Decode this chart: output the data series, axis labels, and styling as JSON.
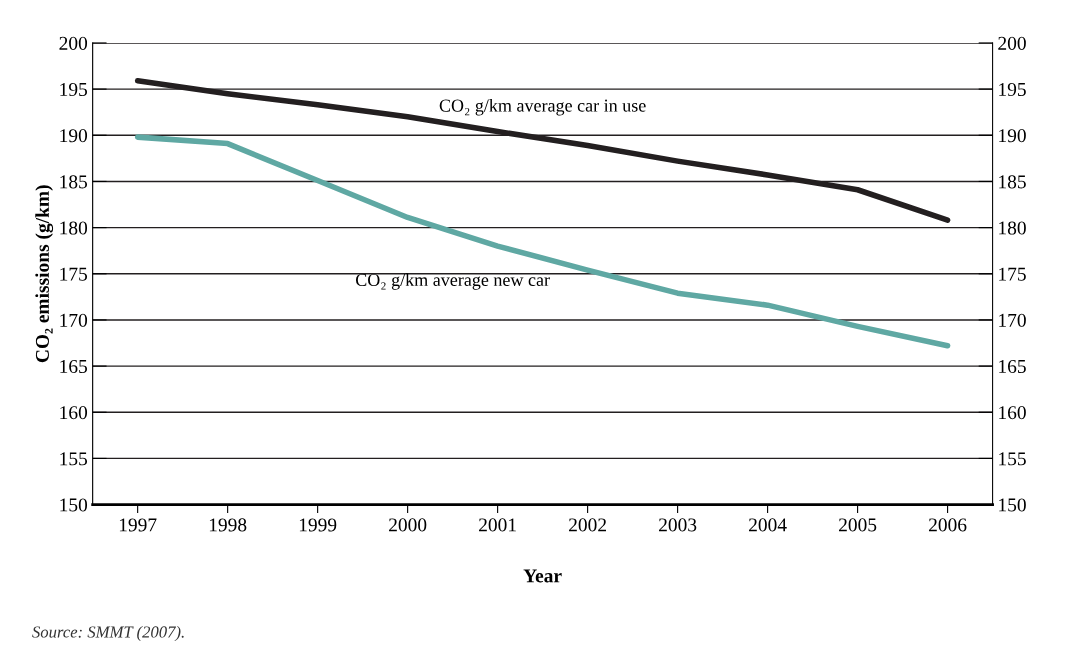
{
  "chart_data": {
    "type": "line",
    "xlabel": "Year",
    "ylabel": "CO₂ emissions (g/km)",
    "categories": [
      "1997",
      "1998",
      "1999",
      "2000",
      "2001",
      "2002",
      "2003",
      "2004",
      "2005",
      "2006"
    ],
    "series": [
      {
        "name": "CO₂ g/km average car in use",
        "color": "#231f20",
        "values": [
          195.9,
          194.5,
          193.3,
          192.0,
          190.4,
          188.9,
          187.2,
          185.7,
          184.1,
          180.8
        ]
      },
      {
        "name": "CO₂ g/km average new car",
        "color": "#5fa8a3",
        "values": [
          189.8,
          189.1,
          185.1,
          181.1,
          178.0,
          175.4,
          172.9,
          171.6,
          169.3,
          167.2
        ]
      }
    ],
    "ylim": [
      150,
      200
    ],
    "yticks": [
      150,
      155,
      160,
      165,
      170,
      175,
      180,
      185,
      190,
      195,
      200
    ],
    "y2lim": [
      150,
      200
    ],
    "y2ticks": [
      150,
      155,
      160,
      165,
      170,
      175,
      180,
      185,
      190,
      195,
      200
    ],
    "grid": "y",
    "legend": false,
    "marker": "none",
    "line_style": "solid",
    "annotations": [
      "Source: SMMT (2007)."
    ]
  }
}
